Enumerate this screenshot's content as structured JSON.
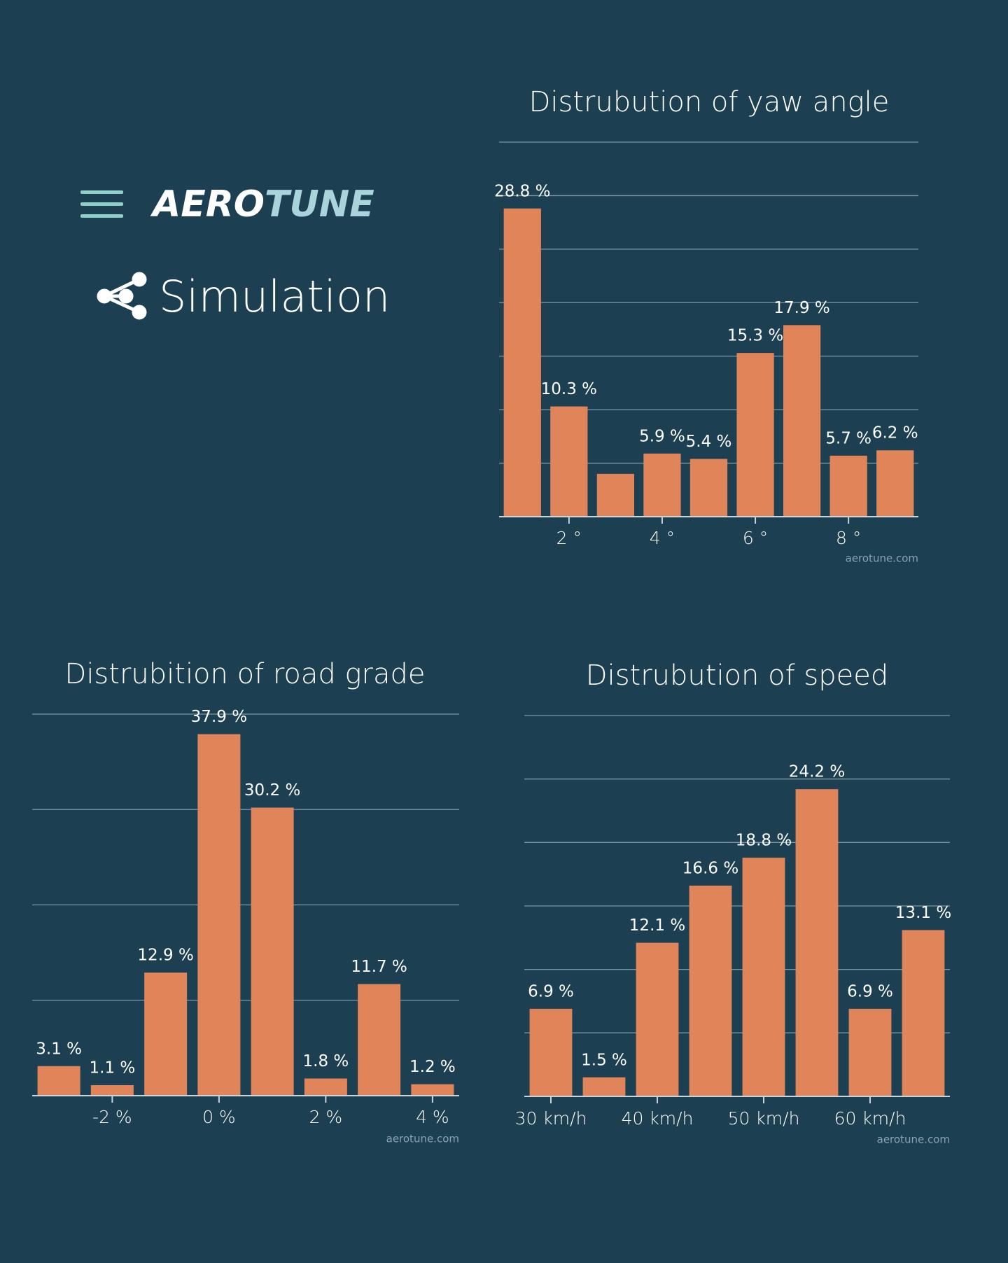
{
  "header": {
    "brand": {
      "main": "AERO",
      "accent": "TUNE"
    },
    "section": "Simulation"
  },
  "chart_data": [
    {
      "type": "bar",
      "title": "Distrubution of yaw angle",
      "categories": [
        null,
        "2 °",
        null,
        "4 °",
        null,
        "6 °",
        null,
        "8 °",
        null
      ],
      "values": [
        28.8,
        10.3,
        4.0,
        5.9,
        5.4,
        15.3,
        17.9,
        5.7,
        6.2
      ],
      "value_labels": [
        "28.8 %",
        "10.3 %",
        null,
        "5.9 %",
        "5.4 %",
        "15.3 %",
        "17.9 %",
        "5.7 %",
        "6.2 %"
      ],
      "color": "#e0855a",
      "ylim": [
        0,
        35
      ],
      "yticks": [
        0,
        5,
        10,
        15,
        20,
        25,
        30,
        35
      ],
      "grid": true,
      "source": "aerotune.com"
    },
    {
      "type": "bar",
      "title": "Distrubition of road grade",
      "categories": [
        null,
        "-2 %",
        null,
        "0 %",
        null,
        "2 %",
        null,
        "4 %"
      ],
      "values": [
        3.1,
        1.1,
        12.9,
        37.9,
        30.2,
        1.8,
        11.7,
        1.2
      ],
      "value_labels": [
        "3.1 %",
        "1.1 %",
        "12.9 %",
        "37.9 %",
        "30.2 %",
        "1.8 %",
        "11.7 %",
        "1.2 %"
      ],
      "color": "#e0855a",
      "ylim": [
        0,
        40
      ],
      "yticks": [
        0,
        10,
        20,
        30,
        40
      ],
      "grid": true,
      "source": "aerotune.com"
    },
    {
      "type": "bar",
      "title": "Distrubution of speed",
      "categories": [
        "30 km/h",
        null,
        "40 km/h",
        null,
        "50 km/h",
        null,
        "60 km/h",
        null
      ],
      "values": [
        6.9,
        1.5,
        12.1,
        16.6,
        18.8,
        24.2,
        6.9,
        13.1
      ],
      "value_labels": [
        "6.9 %",
        "1.5 %",
        "12.1 %",
        "16.6 %",
        "18.8 %",
        "24.2 %",
        "6.9 %",
        "13.1 %"
      ],
      "color": "#e0855a",
      "ylim": [
        0,
        30
      ],
      "yticks": [
        0,
        5,
        10,
        15,
        20,
        25,
        30
      ],
      "grid": true,
      "source": "aerotune.com"
    }
  ]
}
